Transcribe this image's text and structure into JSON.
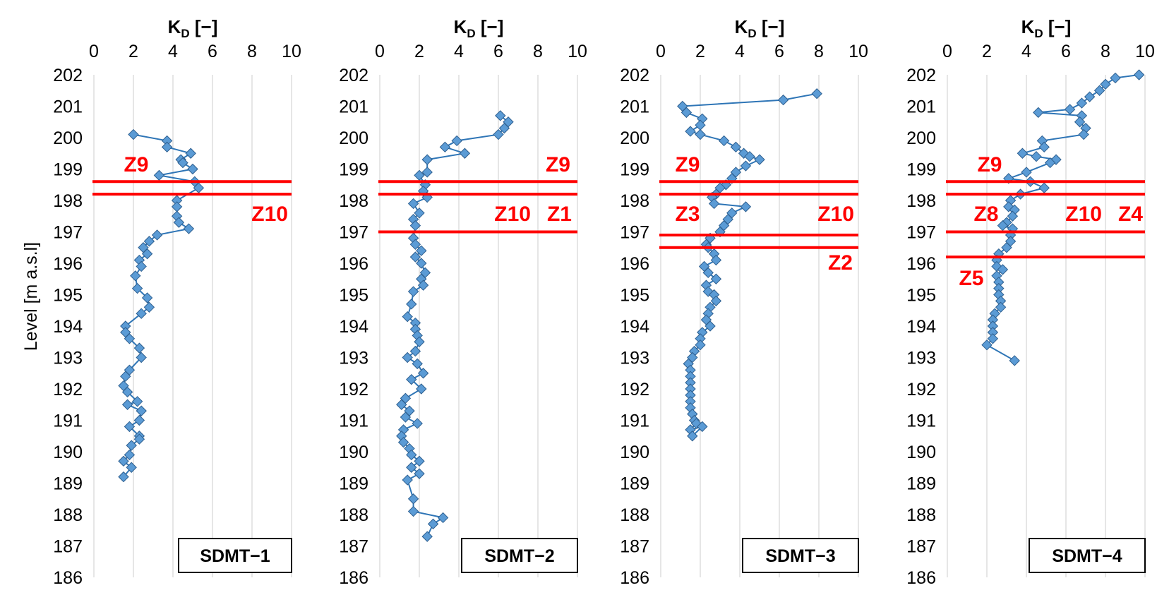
{
  "chart_data": [
    {
      "type": "line",
      "label": "SDMT−1",
      "xlabel": "K",
      "xlabel_sub": "D",
      "xlabel_unit": " [−]",
      "xlim": [
        0,
        10
      ],
      "xticks": [
        0,
        2,
        4,
        6,
        8,
        10
      ],
      "ylim": [
        186,
        202
      ],
      "yticks": [
        186,
        187,
        188,
        189,
        190,
        191,
        192,
        193,
        194,
        195,
        196,
        197,
        198,
        199,
        200,
        201,
        202
      ],
      "ylabel": "Level [m a.s.l]",
      "grid": "vertical",
      "x": [
        2.0,
        3.7,
        3.7,
        4.9,
        4.4,
        4.5,
        5.0,
        3.3,
        5.1,
        5.3,
        4.2,
        4.2,
        4.2,
        4.3,
        4.8,
        3.2,
        2.8,
        2.5,
        2.7,
        2.3,
        2.4,
        2.1,
        2.2,
        2.7,
        2.8,
        2.4,
        1.6,
        1.6,
        1.8,
        2.3,
        2.4,
        1.8,
        1.6,
        1.5,
        1.7,
        2.2,
        1.7,
        2.4,
        2.3,
        1.8,
        2.3,
        2.3,
        1.9,
        1.8,
        1.5,
        1.9,
        1.5
      ],
      "y": [
        200.1,
        199.9,
        199.7,
        199.5,
        199.3,
        199.2,
        199.0,
        198.8,
        198.6,
        198.4,
        198.0,
        197.8,
        197.5,
        197.3,
        197.1,
        196.9,
        196.7,
        196.5,
        196.3,
        196.1,
        195.9,
        195.6,
        195.2,
        194.9,
        194.6,
        194.4,
        194.0,
        193.8,
        193.6,
        193.3,
        193.0,
        192.6,
        192.4,
        192.1,
        191.9,
        191.6,
        191.5,
        191.3,
        191.0,
        190.8,
        190.5,
        190.4,
        190.2,
        189.9,
        189.7,
        189.5,
        189.2
      ],
      "zone_lines": [
        198.6,
        198.2
      ],
      "zones": [
        "Z9",
        "Z10"
      ]
    },
    {
      "type": "line",
      "label": "SDMT−2",
      "xlabel": "K",
      "xlabel_sub": "D",
      "xlabel_unit": " [−]",
      "xlim": [
        0,
        10
      ],
      "xticks": [
        0,
        2,
        4,
        6,
        8,
        10
      ],
      "ylim": [
        186,
        202
      ],
      "yticks": [
        186,
        187,
        188,
        189,
        190,
        191,
        192,
        193,
        194,
        195,
        196,
        197,
        198,
        199,
        200,
        201,
        202
      ],
      "grid": "vertical",
      "x": [
        6.1,
        6.5,
        6.3,
        6.0,
        3.9,
        3.3,
        4.3,
        2.4,
        2.4,
        2.0,
        2.3,
        2.2,
        2.4,
        1.7,
        2.0,
        1.7,
        1.8,
        1.7,
        1.8,
        2.1,
        1.8,
        2.1,
        2.3,
        2.1,
        2.2,
        1.7,
        1.6,
        1.4,
        1.8,
        1.8,
        1.9,
        2.0,
        1.8,
        1.4,
        1.9,
        2.2,
        1.6,
        2.1,
        1.3,
        1.1,
        1.5,
        1.3,
        1.9,
        1.2,
        1.1,
        1.2,
        1.5,
        1.6,
        2.0,
        1.6,
        2.0,
        1.4,
        1.7,
        1.7,
        3.2,
        2.7,
        2.4
      ],
      "y": [
        200.7,
        200.5,
        200.3,
        200.1,
        199.9,
        199.7,
        199.5,
        199.3,
        198.9,
        198.8,
        198.5,
        198.3,
        198.1,
        197.9,
        197.6,
        197.4,
        197.2,
        196.8,
        196.6,
        196.4,
        196.2,
        196.0,
        195.7,
        195.5,
        195.3,
        195.1,
        194.7,
        194.3,
        194.1,
        193.9,
        193.7,
        193.5,
        193.2,
        193.0,
        192.8,
        192.5,
        192.3,
        192.0,
        191.7,
        191.5,
        191.3,
        191.1,
        190.9,
        190.7,
        190.5,
        190.3,
        190.1,
        189.9,
        189.7,
        189.5,
        189.3,
        189.1,
        188.5,
        188.1,
        187.9,
        187.7,
        187.3
      ],
      "zone_lines": [
        198.6,
        198.2,
        197.0
      ],
      "zones": [
        "Z9",
        "Z10",
        "Z1"
      ]
    },
    {
      "type": "line",
      "label": "SDMT−3",
      "xlabel": "K",
      "xlabel_sub": "D",
      "xlabel_unit": " [−]",
      "xlim": [
        0,
        10
      ],
      "xticks": [
        0,
        2,
        4,
        6,
        8,
        10
      ],
      "ylim": [
        186,
        202
      ],
      "yticks": [
        186,
        187,
        188,
        189,
        190,
        191,
        192,
        193,
        194,
        195,
        196,
        197,
        198,
        199,
        200,
        201,
        202
      ],
      "grid": "vertical",
      "x": [
        7.9,
        6.2,
        1.1,
        1.3,
        2.1,
        2.0,
        1.5,
        2.0,
        3.2,
        3.8,
        4.2,
        4.5,
        5.0,
        4.3,
        3.8,
        3.6,
        3.3,
        3.0,
        2.8,
        2.6,
        2.7,
        4.3,
        3.6,
        3.4,
        3.2,
        3.0,
        2.5,
        2.3,
        2.4,
        2.7,
        2.8,
        2.2,
        2.4,
        2.8,
        2.3,
        2.4,
        2.7,
        2.8,
        2.5,
        2.4,
        2.3,
        2.5,
        2.1,
        2.0,
        2.0,
        1.7,
        1.6,
        1.4,
        1.5,
        1.5,
        1.5,
        1.5,
        1.5,
        1.5,
        1.5,
        1.6,
        1.7,
        1.8,
        1.5,
        2.1,
        1.6
      ],
      "y": [
        201.4,
        201.2,
        201.0,
        200.8,
        200.6,
        200.4,
        200.2,
        200.1,
        199.9,
        199.7,
        199.5,
        199.4,
        199.3,
        199.1,
        198.9,
        198.7,
        198.5,
        198.4,
        198.2,
        198.1,
        197.9,
        197.8,
        197.6,
        197.4,
        197.2,
        197.0,
        196.8,
        196.6,
        196.5,
        196.3,
        196.1,
        195.9,
        195.7,
        195.5,
        195.3,
        195.1,
        195.0,
        194.8,
        194.6,
        194.4,
        194.2,
        194.0,
        193.8,
        193.6,
        193.4,
        193.2,
        193.0,
        192.8,
        192.6,
        192.4,
        192.2,
        192.0,
        191.8,
        191.6,
        191.4,
        191.2,
        191.0,
        190.9,
        190.7,
        190.8,
        190.5
      ],
      "zone_lines": [
        198.6,
        198.2,
        196.9,
        196.5
      ],
      "zones": [
        "Z9",
        "Z3",
        "Z10",
        "Z2"
      ]
    },
    {
      "type": "line",
      "label": "SDMT−4",
      "xlabel": "K",
      "xlabel_sub": "D",
      "xlabel_unit": " [−]",
      "xlim": [
        0,
        10
      ],
      "xticks": [
        0,
        2,
        4,
        6,
        8,
        10
      ],
      "ylim": [
        186,
        202
      ],
      "yticks": [
        186,
        187,
        188,
        189,
        190,
        191,
        192,
        193,
        194,
        195,
        196,
        197,
        198,
        199,
        200,
        201,
        202
      ],
      "grid": "vertical",
      "x": [
        9.7,
        8.5,
        8.0,
        7.7,
        7.2,
        6.8,
        6.2,
        4.6,
        6.8,
        6.7,
        7.0,
        6.9,
        4.8,
        4.9,
        3.8,
        4.5,
        5.5,
        5.2,
        4.0,
        3.1,
        4.2,
        4.9,
        3.7,
        3.2,
        3.1,
        3.4,
        3.3,
        3.0,
        2.8,
        3.3,
        3.2,
        3.2,
        3.0,
        2.6,
        2.5,
        2.5,
        2.8,
        2.5,
        2.6,
        2.6,
        2.6,
        2.7,
        2.7,
        2.4,
        2.3,
        2.3,
        2.3,
        2.3,
        2.0,
        3.4
      ],
      "y": [
        202.0,
        201.9,
        201.7,
        201.5,
        201.3,
        201.1,
        200.9,
        200.8,
        200.7,
        200.5,
        200.3,
        200.1,
        199.9,
        199.7,
        199.5,
        199.4,
        199.3,
        199.2,
        198.9,
        198.7,
        198.6,
        198.4,
        198.2,
        198.0,
        197.8,
        197.7,
        197.5,
        197.3,
        197.2,
        197.1,
        196.9,
        196.7,
        196.5,
        196.3,
        196.1,
        195.9,
        195.8,
        195.6,
        195.4,
        195.2,
        195.0,
        194.8,
        194.6,
        194.4,
        194.2,
        194.0,
        193.8,
        193.6,
        193.4,
        192.9
      ],
      "zone_lines": [
        198.6,
        198.2,
        197.0,
        196.2
      ],
      "zones": [
        "Z9",
        "Z8",
        "Z10",
        "Z4",
        "Z5"
      ]
    }
  ]
}
